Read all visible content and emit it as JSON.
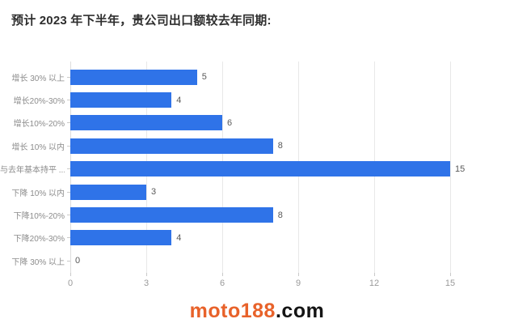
{
  "title": {
    "text": "预计 2023 年下半年，贵公司出口额较去年同期:"
  },
  "chart_data": {
    "type": "bar",
    "orientation": "horizontal",
    "title": "预计 2023 年下半年，贵公司出口额较去年同期:",
    "categories": [
      "增长 30% 以上",
      "增长20%-30%",
      "增长10%-20%",
      "增长 10% 以内",
      "与去年基本持平 ...",
      "下降 10% 以内",
      "下降10%-20%",
      "下降20%-30%",
      "下降 30% 以上"
    ],
    "values": [
      5,
      4,
      6,
      8,
      15,
      3,
      8,
      4,
      0
    ],
    "xlim": [
      0,
      15
    ],
    "x_ticks": [
      0,
      3,
      6,
      9,
      12,
      15
    ],
    "xlabel": "",
    "ylabel": "",
    "grid": true,
    "legend_position": "none",
    "value_labels": true,
    "bar_color": "#2F73E8"
  },
  "colors": {
    "bar": "#2F73E8",
    "gridline": "#e8e8e8",
    "category_label": "#8c8c8c",
    "value_label": "#595959",
    "tick_label": "#9a9a9a",
    "title": "#2e2e2e",
    "watermark_brand": "#E8622A",
    "watermark_suffix": "#141414"
  },
  "watermark": {
    "brand": "moto188",
    "suffix": ".com"
  }
}
